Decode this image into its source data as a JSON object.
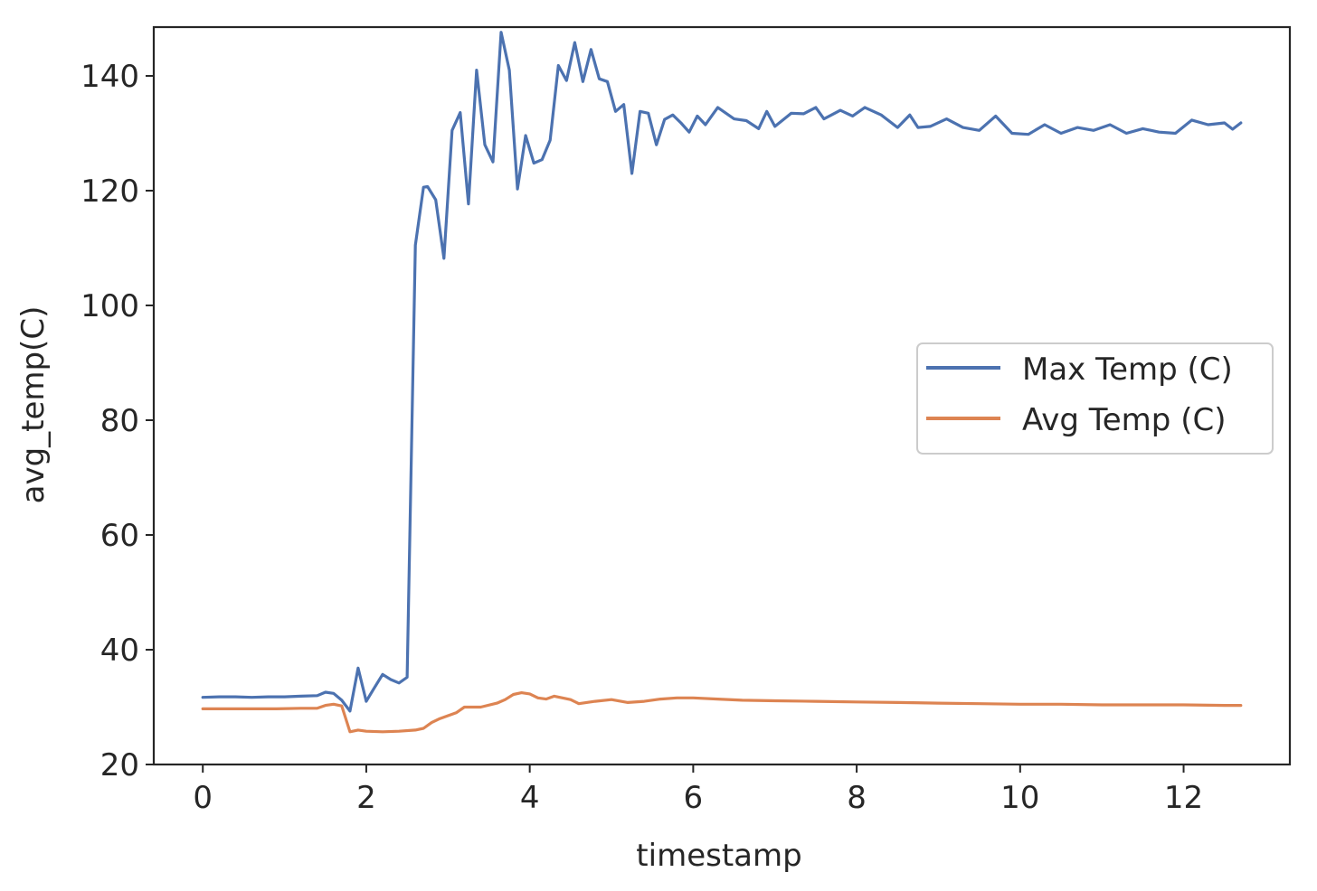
{
  "chart_data": {
    "type": "line",
    "title": "",
    "xlabel": "timestamp",
    "ylabel": "avg_temp(C)",
    "xlim": [
      -0.6,
      13.3
    ],
    "ylim": [
      20,
      148.5
    ],
    "xticks": [
      0,
      2,
      4,
      6,
      8,
      10,
      12
    ],
    "xtick_labels": [
      "0",
      "2",
      "4",
      "6",
      "8",
      "10",
      "12"
    ],
    "yticks": [
      20,
      40,
      60,
      80,
      100,
      120,
      140
    ],
    "ytick_labels": [
      "20",
      "40",
      "60",
      "80",
      "100",
      "120",
      "140"
    ],
    "grid": false,
    "legend": {
      "position": "center-right"
    },
    "series": [
      {
        "name": "Max Temp (C)",
        "color": "#4c72b0",
        "x": [
          0,
          0.2,
          0.4,
          0.6,
          0.8,
          1.0,
          1.2,
          1.4,
          1.5,
          1.6,
          1.7,
          1.8,
          1.9,
          2.0,
          2.1,
          2.2,
          2.3,
          2.4,
          2.5,
          2.6,
          2.7,
          2.75,
          2.85,
          2.95,
          3.05,
          3.15,
          3.25,
          3.35,
          3.45,
          3.55,
          3.65,
          3.75,
          3.85,
          3.95,
          4.05,
          4.15,
          4.25,
          4.35,
          4.45,
          4.55,
          4.65,
          4.75,
          4.85,
          4.95,
          5.05,
          5.15,
          5.25,
          5.35,
          5.45,
          5.55,
          5.65,
          5.75,
          5.85,
          5.95,
          6.05,
          6.15,
          6.3,
          6.5,
          6.65,
          6.8,
          6.9,
          7.0,
          7.2,
          7.35,
          7.5,
          7.6,
          7.8,
          7.95,
          8.1,
          8.3,
          8.5,
          8.65,
          8.75,
          8.9,
          9.1,
          9.3,
          9.5,
          9.7,
          9.9,
          10.1,
          10.3,
          10.5,
          10.7,
          10.9,
          11.1,
          11.3,
          11.5,
          11.7,
          11.9,
          12.1,
          12.3,
          12.5,
          12.6,
          12.7
        ],
        "values": [
          31.7,
          31.8,
          31.8,
          31.7,
          31.8,
          31.8,
          31.9,
          32.0,
          32.6,
          32.4,
          31.2,
          29.3,
          36.8,
          31.0,
          33.4,
          35.7,
          34.8,
          34.2,
          35.2,
          110.5,
          120.6,
          120.7,
          118.4,
          108.2,
          130.5,
          133.6,
          117.7,
          141.0,
          128.0,
          125.0,
          147.6,
          141.0,
          120.3,
          129.6,
          124.8,
          125.4,
          128.8,
          141.8,
          139.2,
          145.8,
          139.0,
          144.6,
          139.5,
          139.0,
          133.8,
          135.0,
          123.0,
          133.8,
          133.5,
          128.0,
          132.4,
          133.2,
          131.8,
          130.2,
          133.0,
          131.5,
          134.5,
          132.5,
          132.2,
          130.8,
          133.8,
          131.2,
          133.5,
          133.4,
          134.5,
          132.5,
          134.0,
          133.0,
          134.5,
          133.2,
          131.0,
          133.2,
          131.0,
          131.2,
          132.5,
          131.0,
          130.5,
          133.0,
          130.0,
          129.8,
          131.5,
          130.0,
          131.0,
          130.5,
          131.5,
          130.0,
          130.8,
          130.2,
          130.0,
          132.3,
          131.5,
          131.8,
          130.7,
          131.8
        ]
      },
      {
        "name": "Avg Temp (C)",
        "color": "#dd8452",
        "x": [
          0,
          0.3,
          0.6,
          0.9,
          1.2,
          1.4,
          1.5,
          1.6,
          1.7,
          1.8,
          1.9,
          2.0,
          2.2,
          2.4,
          2.6,
          2.7,
          2.8,
          2.9,
          3.0,
          3.1,
          3.2,
          3.4,
          3.6,
          3.7,
          3.8,
          3.9,
          4.0,
          4.1,
          4.2,
          4.3,
          4.5,
          4.6,
          4.8,
          5.0,
          5.2,
          5.4,
          5.6,
          5.8,
          6.0,
          6.3,
          6.6,
          7.0,
          7.5,
          8.0,
          8.5,
          9.0,
          9.5,
          10.0,
          10.5,
          11.0,
          11.5,
          12.0,
          12.5,
          12.7
        ],
        "values": [
          29.7,
          29.7,
          29.7,
          29.7,
          29.8,
          29.8,
          30.3,
          30.5,
          30.2,
          25.7,
          26.0,
          25.8,
          25.7,
          25.8,
          26.0,
          26.3,
          27.3,
          28.0,
          28.5,
          29.0,
          30.0,
          30.0,
          30.7,
          31.3,
          32.2,
          32.5,
          32.3,
          31.6,
          31.4,
          31.9,
          31.3,
          30.6,
          31.0,
          31.3,
          30.8,
          31.0,
          31.4,
          31.6,
          31.6,
          31.4,
          31.2,
          31.1,
          31.0,
          30.9,
          30.8,
          30.7,
          30.6,
          30.5,
          30.5,
          30.4,
          30.4,
          30.4,
          30.3,
          30.3
        ]
      }
    ]
  }
}
